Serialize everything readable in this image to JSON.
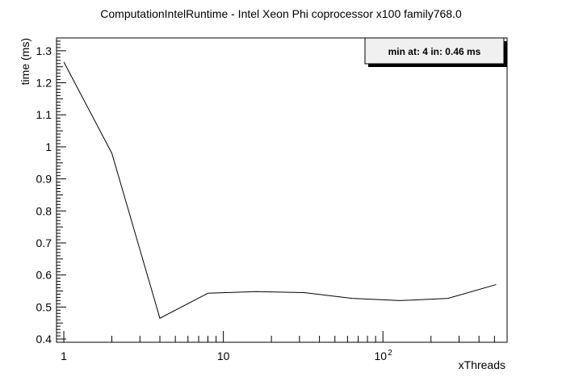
{
  "chart_data": {
    "type": "line",
    "title": "ComputationIntelRuntime - Intel Xeon Phi coprocessor x100 family768.0",
    "xlabel": "xThreads",
    "ylabel": "time (ms)",
    "x_scale": "log",
    "xlim": [
      0.9,
      600
    ],
    "ylim": [
      0.39,
      1.34
    ],
    "x_tick_labels": [
      {
        "value": 1,
        "label": "1"
      },
      {
        "value": 10,
        "label": "10"
      },
      {
        "value": 100,
        "label": "10",
        "exponent": "2"
      }
    ],
    "y_ticks": [
      0.4,
      0.5,
      0.6,
      0.7,
      0.8,
      0.9,
      1,
      1.1,
      1.2,
      1.3
    ],
    "y_tick_labels": [
      "0.4",
      "0.5",
      "0.6",
      "0.7",
      "0.8",
      "0.9",
      "1",
      "1.1",
      "1.2",
      "1.3"
    ],
    "grid": false,
    "legend_position": "top-right",
    "legend_text": "min at: 4 in: 0.46 ms",
    "x": [
      1,
      2,
      4,
      8,
      16,
      32,
      64,
      128,
      256,
      512
    ],
    "values": [
      1.265,
      0.98,
      0.465,
      0.543,
      0.548,
      0.545,
      0.527,
      0.52,
      0.527,
      0.57
    ]
  },
  "colors": {
    "line": "#000000",
    "frame": "#000000",
    "legend_bg": "#f0f0f0",
    "background": "#ffffff"
  }
}
